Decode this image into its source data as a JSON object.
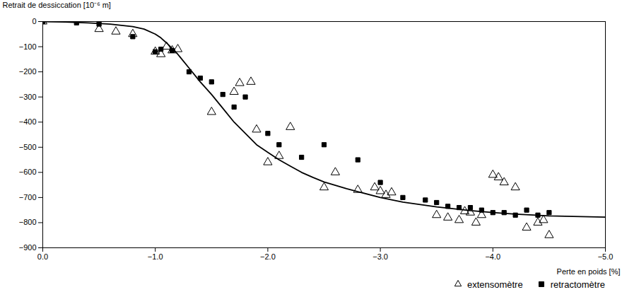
{
  "chart_data": {
    "type": "scatter",
    "x_label": "Perte en poids [%]",
    "y_label": "Retrait de dessiccation [10⁻⁶ m]",
    "xlim": [
      0,
      -5
    ],
    "ylim": [
      -900,
      0
    ],
    "xticks": [
      0,
      -1,
      -2,
      -3,
      -4,
      -5
    ],
    "yticks": [
      -900,
      -800,
      -700,
      -600,
      -500,
      -400,
      -300,
      -200,
      -100,
      0
    ],
    "grid": false,
    "legend": "lower right",
    "series": [
      {
        "type": "line",
        "color": "#000000",
        "line_style": "solid",
        "x": [
          0,
          -0.2,
          -0.4,
          -0.6,
          -0.8,
          -0.9,
          -1.0,
          -1.05,
          -1.1,
          -1.2,
          -1.3,
          -1.4,
          -1.5,
          -1.6,
          -1.7,
          -1.8,
          -1.9,
          -2.0,
          -2.1,
          -2.2,
          -2.3,
          -2.4,
          -2.5,
          -2.7,
          -3.0,
          -3.2,
          -3.5,
          -3.8,
          -4.0,
          -4.2,
          -4.5,
          -5.0
        ],
        "values": [
          0,
          -2,
          -5,
          -10,
          -20,
          -30,
          -50,
          -65,
          -85,
          -130,
          -185,
          -240,
          -290,
          -345,
          -400,
          -445,
          -490,
          -520,
          -550,
          -575,
          -600,
          -620,
          -638,
          -665,
          -700,
          -718,
          -737,
          -752,
          -760,
          -766,
          -773,
          -778
        ]
      },
      {
        "name": "extensomètre",
        "type": "scatter",
        "color": "#000000",
        "marker": "triangle_open",
        "x": [
          0,
          -0.5,
          -0.65,
          -0.8,
          -1.0,
          -1.05,
          -1.1,
          -1.15,
          -1.2,
          -1.5,
          -1.7,
          -1.75,
          -1.85,
          -1.9,
          -2.0,
          -2.1,
          -2.2,
          -2.5,
          -2.6,
          -2.8,
          -2.95,
          -3.0,
          -3.05,
          -3.1,
          -3.5,
          -3.6,
          -3.7,
          -3.75,
          -3.8,
          -3.85,
          -3.9,
          -4.0,
          -4.05,
          -4.1,
          -4.2,
          -4.3,
          -4.4,
          -4.45,
          -4.5
        ],
        "values": [
          0,
          -30,
          -40,
          -50,
          -120,
          -130,
          -100,
          -115,
          -110,
          -360,
          -280,
          -245,
          -240,
          -430,
          -560,
          -535,
          -420,
          -660,
          -600,
          -670,
          -660,
          -675,
          -690,
          -680,
          -770,
          -780,
          -790,
          -755,
          -760,
          -800,
          -770,
          -610,
          -620,
          -640,
          -660,
          -820,
          -800,
          -790,
          -850
        ]
      },
      {
        "name": "retractomètre",
        "type": "scatter",
        "color": "#000000",
        "marker": "square",
        "x": [
          0,
          -0.3,
          -0.5,
          -0.8,
          -1.0,
          -1.05,
          -1.15,
          -1.3,
          -1.4,
          -1.5,
          -1.6,
          -1.7,
          -1.8,
          -2.0,
          -2.1,
          -2.3,
          -2.5,
          -2.8,
          -3.0,
          -3.2,
          -3.4,
          -3.5,
          -3.6,
          -3.7,
          -3.8,
          -3.9,
          -4.0,
          -4.1,
          -4.2,
          -4.3,
          -4.4,
          -4.5
        ],
        "values": [
          0,
          -5,
          -10,
          -60,
          -120,
          -110,
          -115,
          -200,
          -225,
          -240,
          -290,
          -340,
          -300,
          -445,
          -490,
          -540,
          -490,
          -550,
          -640,
          -700,
          -710,
          -720,
          -735,
          -740,
          -740,
          -750,
          -760,
          -760,
          -770,
          -750,
          -770,
          -760
        ]
      }
    ]
  }
}
